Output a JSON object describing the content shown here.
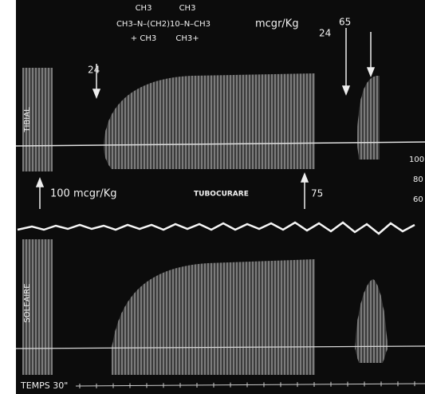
{
  "figure": {
    "formula": [
      "CH3",
      "CH3",
      "CH3–N–(CH2)10–N–CH3",
      "+ CH3",
      "CH3+"
    ],
    "dose_unit": "mcgr/Kg",
    "doses_top": [
      "24",
      "24",
      "65"
    ],
    "muscle_top": "TIBIAL",
    "dose_bottom_left": "100  mcgr/Kg",
    "drug": "TUBOCURARE",
    "dose_bottom_right": "75",
    "muscle_bottom": "SOLEAIRE",
    "time_label": "TEMPS 30\"",
    "scale_partial": [
      "100",
      "80",
      "60"
    ]
  }
}
